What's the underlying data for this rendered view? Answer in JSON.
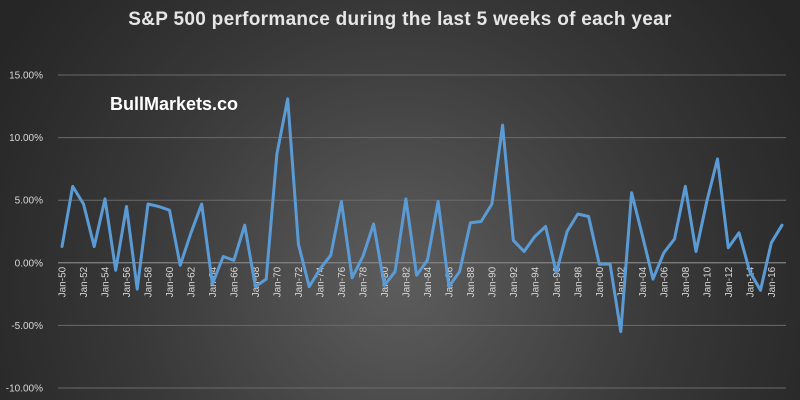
{
  "chart_data": {
    "type": "line",
    "title": "S&P 500 performance during the last 5 weeks of each year",
    "watermark": "BullMarkets.co",
    "ylim": [
      -0.1,
      0.15
    ],
    "yticks": [
      -0.1,
      -0.05,
      0.0,
      0.05,
      0.1,
      0.15
    ],
    "ytick_labels": [
      "-10.00%",
      "-5.00%",
      "0.00%",
      "5.00%",
      "10.00%",
      "15.00%"
    ],
    "xtick_labels": [
      "Jan-50",
      "Jan-52",
      "Jan-54",
      "Jan-56",
      "Jan-58",
      "Jan-60",
      "Jan-62",
      "Jan-64",
      "Jan-66",
      "Jan-68",
      "Jan-70",
      "Jan-72",
      "Jan-74",
      "Jan-76",
      "Jan-78",
      "Jan-80",
      "Jan-82",
      "Jan-84",
      "Jan-86",
      "Jan-88",
      "Jan-90",
      "Jan-92",
      "Jan-94",
      "Jan-96",
      "Jan-98",
      "Jan-00",
      "Jan-02",
      "Jan-04",
      "Jan-06",
      "Jan-08",
      "Jan-10",
      "Jan-12",
      "Jan-14",
      "Jan-16"
    ],
    "grid": true,
    "line_color": "#5b9bd5",
    "series": [
      {
        "x": [
          1950,
          1951,
          1952,
          1953,
          1954,
          1955,
          1956,
          1957,
          1958,
          1959,
          1960,
          1961,
          1962,
          1963,
          1964,
          1965,
          1966,
          1967,
          1968,
          1969,
          1970,
          1971,
          1972,
          1973,
          1974,
          1975,
          1976,
          1977,
          1978,
          1979,
          1980,
          1981,
          1982,
          1983,
          1984,
          1985,
          1986,
          1987,
          1988,
          1989,
          1990,
          1991,
          1992,
          1993,
          1994,
          1995,
          1996,
          1997,
          1998,
          1999,
          2000,
          2001,
          2002,
          2003,
          2004,
          2005,
          2006,
          2007,
          2008,
          2009,
          2010,
          2011,
          2012,
          2013,
          2014,
          2015,
          2016,
          2017
        ],
        "values": [
          0.013,
          0.061,
          0.047,
          0.013,
          0.051,
          -0.006,
          0.045,
          -0.021,
          0.047,
          0.045,
          0.042,
          -0.002,
          0.024,
          0.047,
          -0.017,
          0.005,
          0.002,
          0.03,
          -0.019,
          -0.013,
          0.087,
          0.131,
          0.015,
          -0.019,
          -0.005,
          0.006,
          0.049,
          -0.012,
          0.005,
          0.031,
          -0.018,
          -0.007,
          0.051,
          -0.01,
          0.002,
          0.049,
          -0.019,
          -0.007,
          0.032,
          0.033,
          0.047,
          0.11,
          0.018,
          0.009,
          0.021,
          0.029,
          -0.008,
          0.025,
          0.039,
          0.037,
          -0.001,
          -0.001,
          -0.055,
          0.056,
          0.022,
          -0.013,
          0.008,
          0.019,
          0.061,
          0.009,
          0.049,
          0.083,
          0.012,
          0.024,
          -0.007,
          -0.022,
          0.016,
          0.03
        ]
      }
    ]
  }
}
